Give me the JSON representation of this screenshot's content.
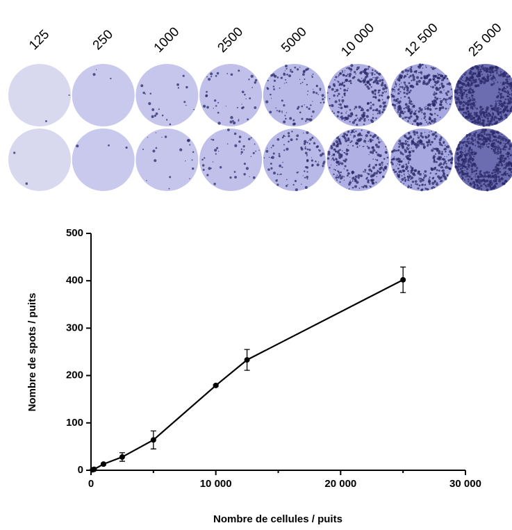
{
  "chart_data": {
    "type": "line",
    "well_labels": [
      "125",
      "250",
      "1000",
      "2500",
      "5000",
      "10 000",
      "12 500",
      "25 000"
    ],
    "x_label": "Nombre de cellules / puits",
    "y_label": "Nombre de spots / puits",
    "x": [
      125,
      250,
      1000,
      2500,
      5000,
      10000,
      12500,
      25000
    ],
    "values": [
      1,
      2,
      13,
      28,
      64,
      179,
      233,
      402
    ],
    "errors": [
      0,
      0,
      2,
      9,
      19,
      2,
      22,
      27
    ],
    "color": "#000000",
    "xlim": [
      0,
      30000
    ],
    "xticks": [
      0,
      {
        "value": 10000,
        "label": "10 000"
      },
      {
        "value": 20000,
        "label": "20 000"
      },
      {
        "value": 30000,
        "label": "30 000"
      }
    ],
    "xminorticks": [
      5000,
      15000,
      25000
    ],
    "ylim": [
      0,
      500
    ],
    "yticks": [
      0,
      100,
      200,
      300,
      400,
      500
    ]
  }
}
